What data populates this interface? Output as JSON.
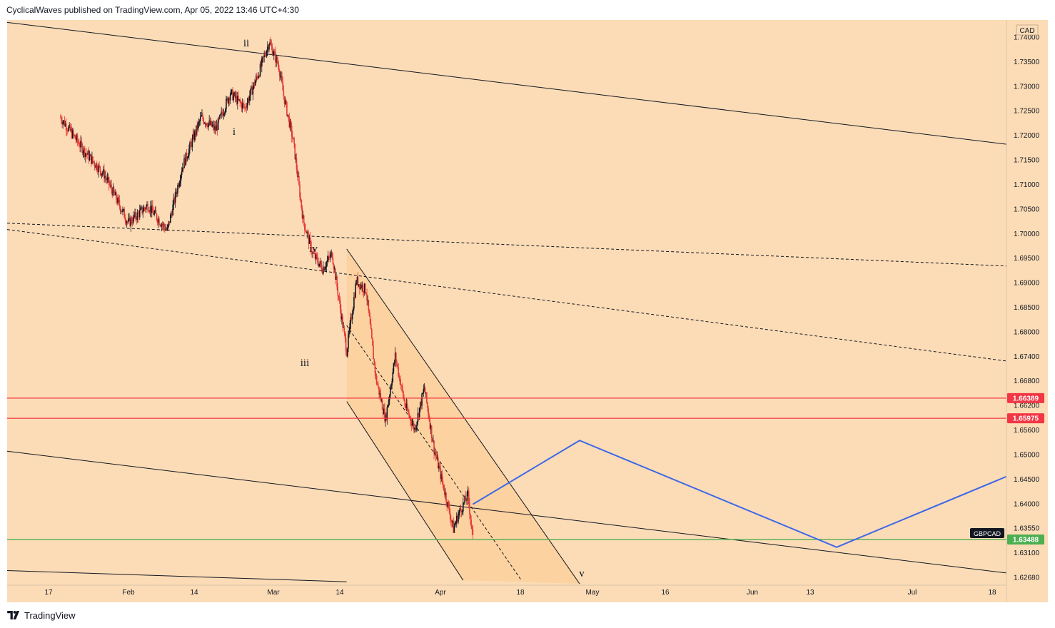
{
  "header": {
    "publisher_line": "CyclicalWaves published on TradingView.com, Apr 05, 2022 13:46 UTC+4:30"
  },
  "footer": {
    "brand": "TradingView",
    "logo_icon": "tradingview-logo-icon"
  },
  "colors": {
    "background": "#fcdcb6",
    "channel_fill": "#fbd09c",
    "resistance": "#f23645",
    "support": "#4caf50",
    "projection": "#3d67e8",
    "bull_candle": "#131722",
    "bear_candle": "#e53935"
  },
  "chart_data": {
    "type": "candlestick",
    "symbol": "GBPCAD",
    "currency_label": "CAD",
    "y_ticks": [
      "1.74000",
      "1.73500",
      "1.73000",
      "1.72500",
      "1.72000",
      "1.71500",
      "1.71000",
      "1.70500",
      "1.70000",
      "1.69500",
      "1.69000",
      "1.68500",
      "1.68000",
      "1.67400",
      "1.66800",
      "1.66200",
      "1.65600",
      "1.65000",
      "1.64500",
      "1.64000",
      "1.63550",
      "1.63100",
      "1.62680"
    ],
    "x_ticks": [
      "17",
      "Feb",
      "14",
      "Mar",
      "14",
      "Apr",
      "18",
      "May",
      "16",
      "Jun",
      "13",
      "Jul",
      "18"
    ],
    "ylim": [
      1.6255,
      1.7415
    ],
    "price_labels": [
      {
        "label": "1.66389",
        "value": 1.66389,
        "color": "#f23645"
      },
      {
        "label": "1.65975",
        "value": 1.65975,
        "color": "#f23645"
      },
      {
        "label": "1.63488",
        "value": 1.63488,
        "color": "#4caf50"
      }
    ],
    "symbol_tag": "GBPCAD",
    "wave_labels": [
      "i",
      "ii",
      "iii",
      "iv",
      "v"
    ],
    "path_points": [
      {
        "date": "2022-01-10",
        "price": 1.7215
      },
      {
        "date": "2022-01-15",
        "price": 1.7145
      },
      {
        "date": "2022-01-19",
        "price": 1.7098
      },
      {
        "date": "2022-01-24",
        "price": 1.6998
      },
      {
        "date": "2022-01-28",
        "price": 1.7035
      },
      {
        "date": "2022-02-01",
        "price": 1.6982
      },
      {
        "date": "2022-02-04",
        "price": 1.711
      },
      {
        "date": "2022-02-08",
        "price": 1.7215
      },
      {
        "date": "2022-02-11",
        "price": 1.719
      },
      {
        "date": "2022-02-14",
        "price": 1.7265
      },
      {
        "date": "2022-02-17",
        "price": 1.7235
      },
      {
        "date": "2022-02-20",
        "price": 1.731
      },
      {
        "date": "2022-02-22",
        "price": 1.737
      },
      {
        "date": "2022-02-24",
        "price": 1.732
      },
      {
        "date": "2022-02-25",
        "price": 1.726
      },
      {
        "date": "2022-02-27",
        "price": 1.7165
      },
      {
        "date": "2022-03-01",
        "price": 1.7005
      },
      {
        "date": "2022-03-03",
        "price": 1.6935
      },
      {
        "date": "2022-03-05",
        "price": 1.6905
      },
      {
        "date": "2022-03-07",
        "price": 1.6935
      },
      {
        "date": "2022-03-09",
        "price": 1.68
      },
      {
        "date": "2022-03-10",
        "price": 1.6735
      },
      {
        "date": "2022-03-12",
        "price": 1.688
      },
      {
        "date": "2022-03-14",
        "price": 1.686
      },
      {
        "date": "2022-03-16",
        "price": 1.668
      },
      {
        "date": "2022-03-18",
        "price": 1.6595
      },
      {
        "date": "2022-03-20",
        "price": 1.6725
      },
      {
        "date": "2022-03-22",
        "price": 1.6625
      },
      {
        "date": "2022-03-24",
        "price": 1.6575
      },
      {
        "date": "2022-03-26",
        "price": 1.666
      },
      {
        "date": "2022-03-28",
        "price": 1.6535
      },
      {
        "date": "2022-03-30",
        "price": 1.6455
      },
      {
        "date": "2022-04-01",
        "price": 1.637
      },
      {
        "date": "2022-04-02",
        "price": 1.64
      },
      {
        "date": "2022-04-04",
        "price": 1.644
      },
      {
        "date": "2022-04-05",
        "price": 1.6348
      }
    ],
    "projection_points": [
      {
        "date": "2022-04-05",
        "price": 1.6421
      },
      {
        "date": "2022-04-27",
        "price": 1.6552
      },
      {
        "date": "2022-06-19",
        "price": 1.6333
      },
      {
        "date": "2022-07-24",
        "price": 1.6478
      }
    ],
    "trendlines": [
      {
        "name": "upper-channel",
        "style": "solid",
        "from": {
          "date": "2021-12-30",
          "price": 1.741
        },
        "to": {
          "date": "2022-07-24",
          "price": 1.716
        }
      },
      {
        "name": "lower-channel",
        "style": "solid",
        "from": {
          "date": "2021-12-30",
          "price": 1.653
        },
        "to": {
          "date": "2022-07-24",
          "price": 1.628
        }
      },
      {
        "name": "bottom-line",
        "style": "solid",
        "from": {
          "date": "2021-12-30",
          "price": 1.6285
        },
        "to": {
          "date": "2022-03-10",
          "price": 1.6262
        }
      },
      {
        "name": "midline-1",
        "style": "dashed",
        "from": {
          "date": "2021-12-30",
          "price": 1.6998
        },
        "to": {
          "date": "2022-07-24",
          "price": 1.691
        }
      },
      {
        "name": "midline-2",
        "style": "dashed",
        "from": {
          "date": "2021-12-30",
          "price": 1.6985
        },
        "to": {
          "date": "2022-07-24",
          "price": 1.6715
        }
      },
      {
        "name": "down-channel-upper",
        "style": "solid",
        "from": {
          "date": "2022-03-10",
          "price": 1.6945
        },
        "to": {
          "date": "2022-04-27",
          "price": 1.6258
        }
      },
      {
        "name": "down-channel-lower",
        "style": "solid",
        "from": {
          "date": "2022-03-10",
          "price": 1.6632
        },
        "to": {
          "date": "2022-04-03",
          "price": 1.6265
        }
      },
      {
        "name": "down-channel-mid",
        "style": "dashed",
        "from": {
          "date": "2022-03-10",
          "price": 1.6788
        },
        "to": {
          "date": "2022-04-15",
          "price": 1.6265
        }
      }
    ]
  }
}
